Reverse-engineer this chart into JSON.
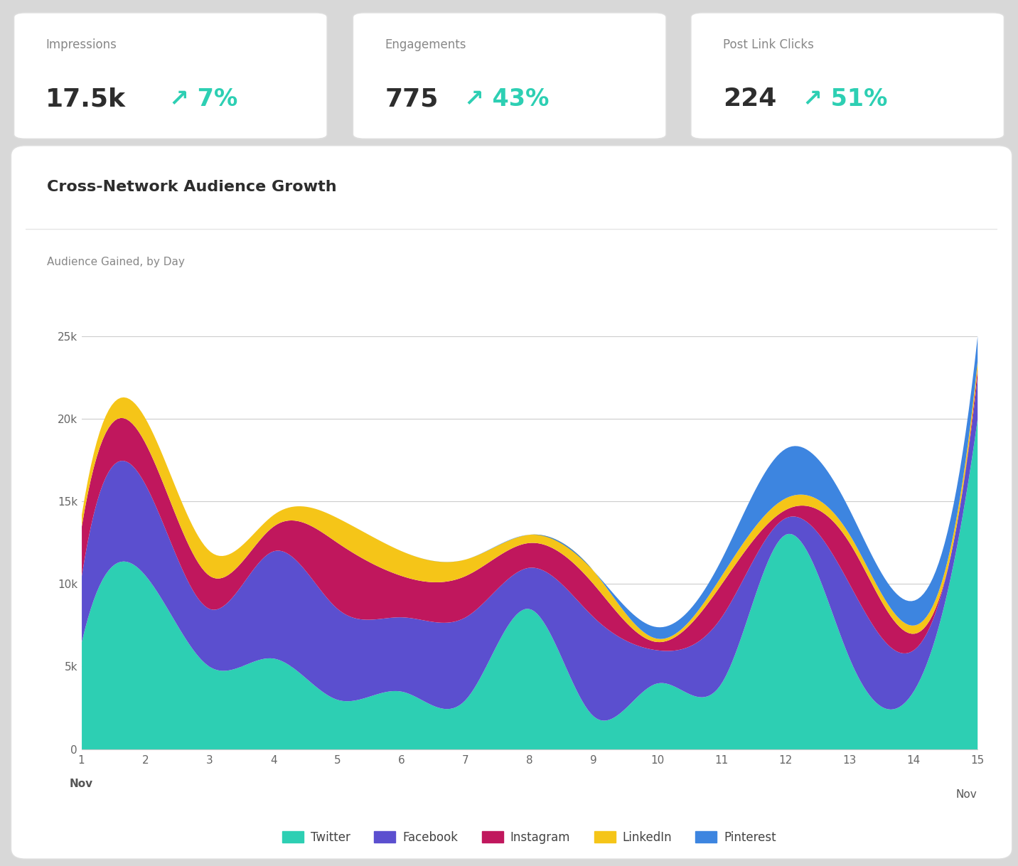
{
  "title": "Cross-Network Audience Growth",
  "ylabel": "Audience Gained, by Day",
  "x_ticks": [
    1,
    2,
    3,
    4,
    5,
    6,
    7,
    8,
    9,
    10,
    11,
    12,
    13,
    14,
    15
  ],
  "y_ticks": [
    0,
    5000,
    10000,
    15000,
    20000,
    25000
  ],
  "y_tick_labels": [
    "0",
    "5k",
    "10k",
    "15k",
    "20k",
    "25k"
  ],
  "ylim": [
    0,
    27000
  ],
  "series": {
    "Twitter": [
      6500,
      10500,
      5000,
      5500,
      3000,
      3500,
      3000,
      8500,
      2000,
      4000,
      4000,
      13000,
      5500,
      3500,
      20000
    ],
    "Facebook": [
      4000,
      5500,
      3500,
      6500,
      5500,
      4500,
      5000,
      2500,
      6000,
      2000,
      4000,
      1000,
      4500,
      2500,
      2500
    ],
    "Instagram": [
      3000,
      2500,
      2000,
      1500,
      4000,
      2500,
      2500,
      1500,
      2000,
      500,
      2000,
      500,
      2500,
      1000,
      500
    ],
    "LinkedIn": [
      700,
      1500,
      1500,
      700,
      1500,
      1500,
      1000,
      500,
      800,
      200,
      500,
      700,
      500,
      500,
      500
    ],
    "Pinterest": [
      0,
      0,
      0,
      0,
      0,
      0,
      0,
      0,
      0,
      700,
      1000,
      3000,
      1500,
      1500,
      1500
    ]
  },
  "colors": {
    "Twitter": "#2dcfb3",
    "Facebook": "#5b4fcf",
    "Instagram": "#c0175d",
    "LinkedIn": "#f5c518",
    "Pinterest": "#3d85e0"
  },
  "legend_order": [
    "Twitter",
    "Facebook",
    "Instagram",
    "LinkedIn",
    "Pinterest"
  ],
  "stats_cards": [
    {
      "label": "Impressions",
      "value": "17.5k",
      "change": "7%"
    },
    {
      "label": "Engagements",
      "value": "775",
      "change": "43%"
    },
    {
      "label": "Post Link Clicks",
      "value": "224",
      "change": "51%"
    }
  ],
  "accent_color": "#2dcfb3",
  "text_dark": "#2d2d2d",
  "text_medium": "#888888",
  "card_border": "#dddddd",
  "grid_color": "#cccccc",
  "outer_bg": "#d8d8d8"
}
